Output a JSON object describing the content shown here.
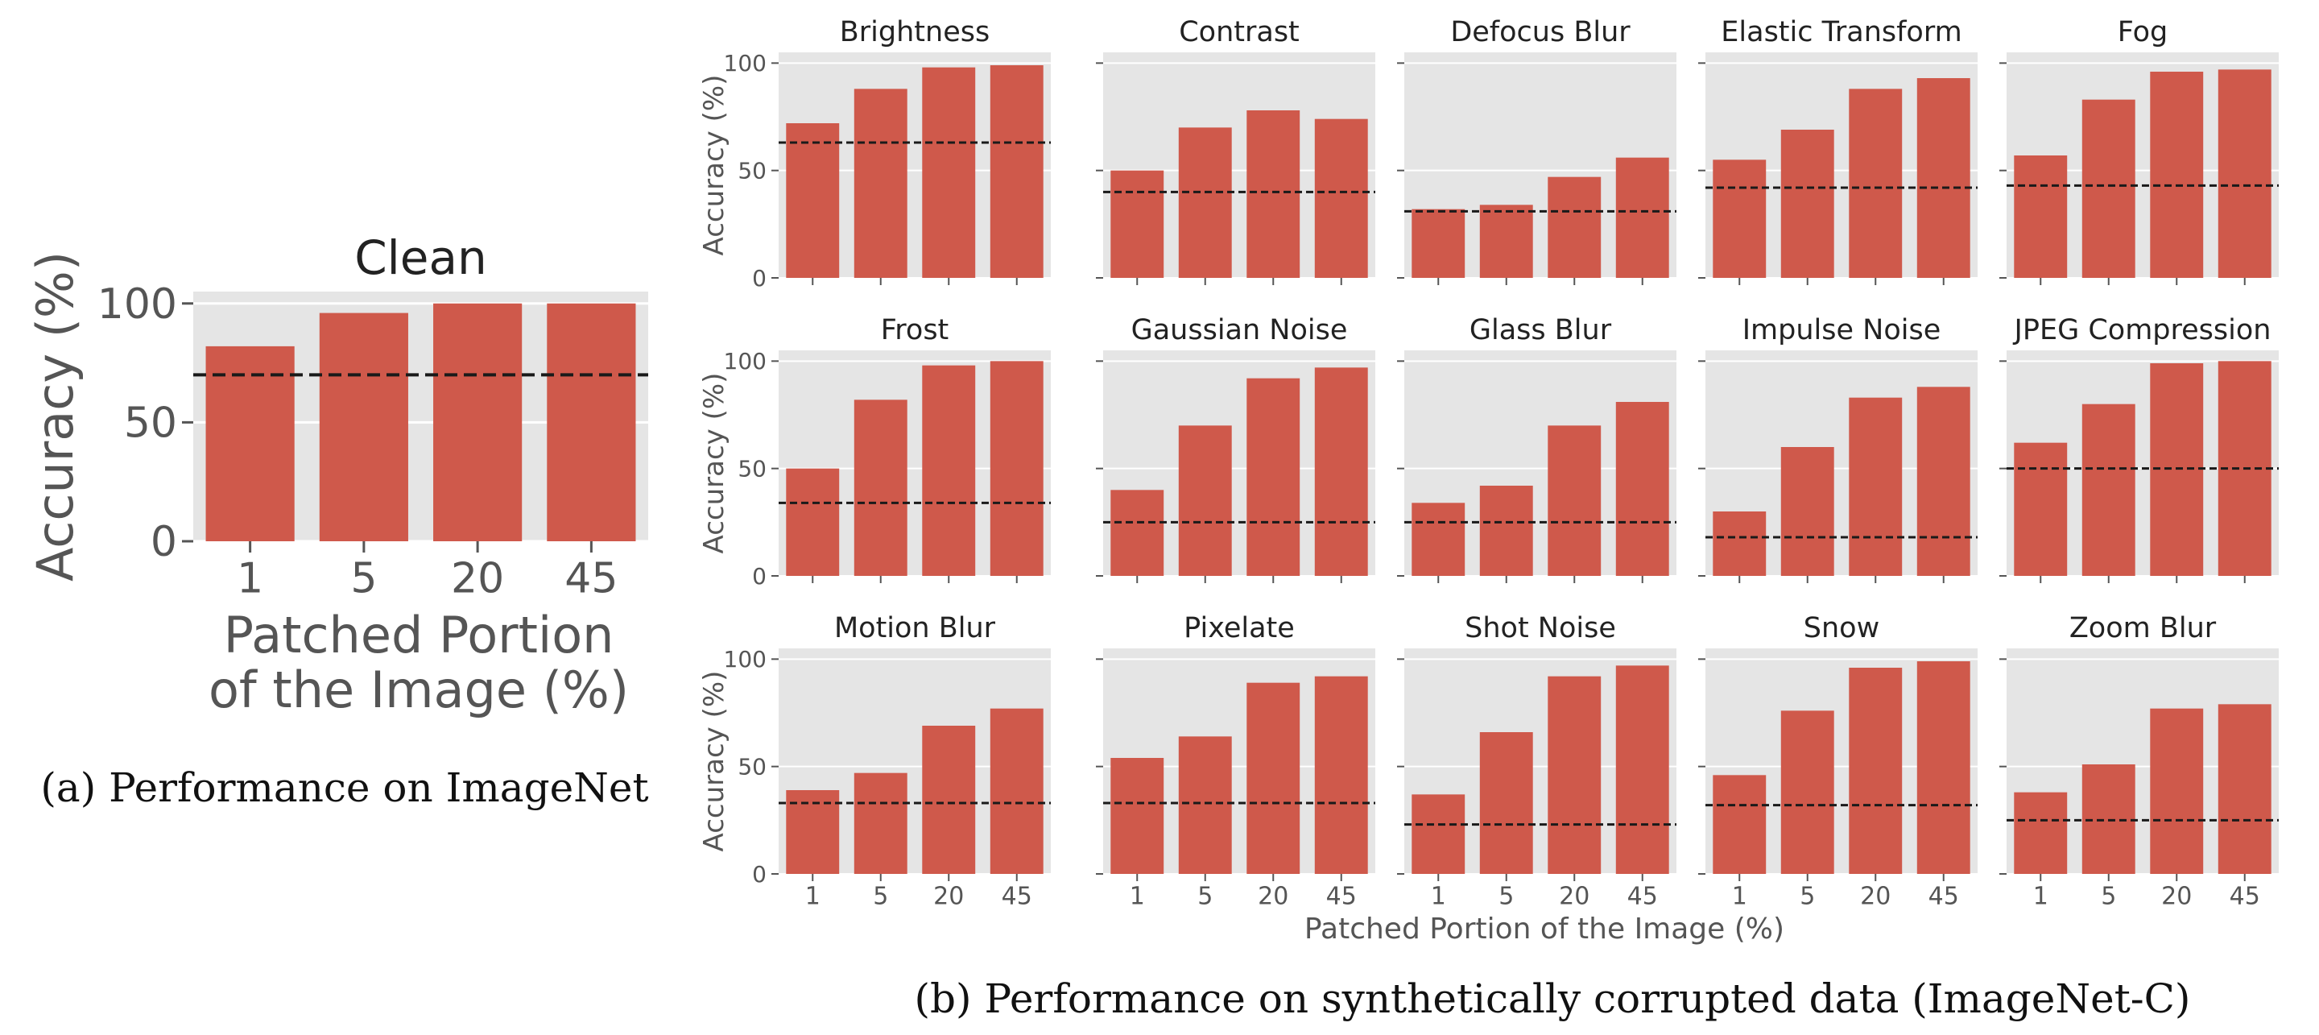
{
  "captions": {
    "a": "(a) Performance on ImageNet",
    "b": "(b) Performance on synthetically corrupted data (ImageNet-C)"
  },
  "shared_xlabel": "Patched Portion of the Image (%)",
  "colors": {
    "bar": "#cf594b",
    "panel_bg": "#e5e5e5",
    "grid": "#ffffff",
    "baseline": "#1a1a1a"
  },
  "chart_data": [
    {
      "type": "bar",
      "id": "clean",
      "title": "Clean",
      "categories": [
        "1",
        "5",
        "20",
        "45"
      ],
      "values": [
        82,
        96,
        100,
        100
      ],
      "baseline": 70,
      "ylim": [
        0,
        105
      ],
      "yticks": [
        0,
        50,
        100
      ],
      "ylabel": "Accuracy (%)",
      "xlabel_lines": [
        "Patched Portion",
        "of the Image (%)"
      ]
    },
    {
      "type": "bar",
      "id": "corruptions",
      "layout": "grid-3x5",
      "ylabel": "Accuracy (%)",
      "categories": [
        "1",
        "5",
        "20",
        "45"
      ],
      "ylim": [
        0,
        105
      ],
      "yticks": [
        0,
        50,
        100
      ],
      "panels": [
        {
          "title": "Brightness",
          "values": [
            72,
            88,
            98,
            99
          ],
          "baseline": 63
        },
        {
          "title": "Contrast",
          "values": [
            50,
            70,
            78,
            74
          ],
          "baseline": 40
        },
        {
          "title": "Defocus Blur",
          "values": [
            32,
            34,
            47,
            56
          ],
          "baseline": 31
        },
        {
          "title": "Elastic Transform",
          "values": [
            55,
            69,
            88,
            93
          ],
          "baseline": 42
        },
        {
          "title": "Fog",
          "values": [
            57,
            83,
            96,
            97
          ],
          "baseline": 43
        },
        {
          "title": "Frost",
          "values": [
            50,
            82,
            98,
            100
          ],
          "baseline": 34
        },
        {
          "title": "Gaussian Noise",
          "values": [
            40,
            70,
            92,
            97
          ],
          "baseline": 25
        },
        {
          "title": "Glass Blur",
          "values": [
            34,
            42,
            70,
            81
          ],
          "baseline": 25
        },
        {
          "title": "Impulse Noise",
          "values": [
            30,
            60,
            83,
            88
          ],
          "baseline": 18
        },
        {
          "title": "JPEG Compression",
          "values": [
            62,
            80,
            99,
            100
          ],
          "baseline": 50
        },
        {
          "title": "Motion Blur",
          "values": [
            39,
            47,
            69,
            77
          ],
          "baseline": 33
        },
        {
          "title": "Pixelate",
          "values": [
            54,
            64,
            89,
            92
          ],
          "baseline": 33
        },
        {
          "title": "Shot Noise",
          "values": [
            37,
            66,
            92,
            97
          ],
          "baseline": 23
        },
        {
          "title": "Snow",
          "values": [
            46,
            76,
            96,
            99
          ],
          "baseline": 32
        },
        {
          "title": "Zoom Blur",
          "values": [
            38,
            51,
            77,
            79
          ],
          "baseline": 25
        }
      ]
    }
  ]
}
